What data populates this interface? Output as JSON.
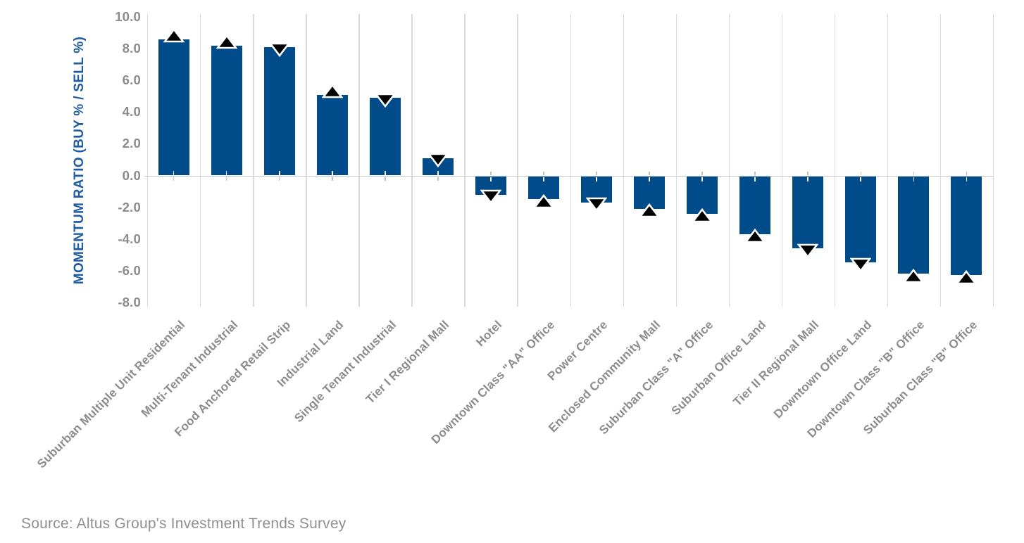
{
  "chart_data": {
    "type": "bar",
    "title": "",
    "xlabel": "",
    "ylabel": "MOMENTUM RATIO (BUY % / SELL %)",
    "ylim": [
      -8.0,
      10.0
    ],
    "ytick_step": 2.0,
    "y_tick_labels": [
      "10.0",
      "8.0",
      "6.0",
      "4.0",
      "2.0",
      "0.0",
      "-2.0",
      "-4.0",
      "-6.0",
      "-8.0"
    ],
    "grid": "vertical-category-separators-only",
    "legend": "none",
    "categories": [
      "Suburban Multiple Unit Residential",
      "Multi-Tenant Industrial",
      "Food Anchored Retail Strip",
      "Industrial Land",
      "Single Tenant Industrial",
      "Tier I Regional Mall",
      "Hotel",
      "Downtown Class \"AA\" Office",
      "Power Centre",
      "Enclosed Community Mall",
      "Suburban Class \"A\" Office",
      "Suburban Office Land",
      "Tier II Regional Mall",
      "Downtown Office Land",
      "Downtown Class \"B\" Office",
      "Suburban Class \"B\" Office"
    ],
    "series": [
      {
        "name": "Momentum Ratio (Buy % / Sell %)",
        "values": [
          8.6,
          8.2,
          8.1,
          5.1,
          4.9,
          1.1,
          -1.2,
          -1.5,
          -1.7,
          -2.1,
          -2.4,
          -3.7,
          -4.6,
          -5.5,
          -6.2,
          -6.3
        ]
      }
    ],
    "trend_markers": [
      "up",
      "up",
      "down",
      "up",
      "down",
      "down",
      "down",
      "up",
      "down",
      "up",
      "up",
      "up",
      "down",
      "down",
      "up",
      "up"
    ],
    "source_note": "Source: Altus Group's Investment Trends Survey",
    "colors": {
      "bar": "#004b8a",
      "marker_fill": "#000000",
      "marker_stroke": "#ffffff",
      "axis_title": "#1e5c9f",
      "tick_label": "#8c8c8c",
      "category_label": "#8c8c8c",
      "gridline": "#dadada",
      "zero_line": "#c6c6c6",
      "source_text": "#8f8f8f",
      "background": "#ffffff"
    }
  }
}
